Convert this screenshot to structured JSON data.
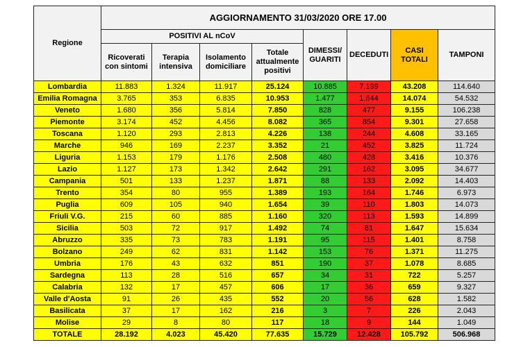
{
  "header": {
    "title": "AGGIORNAMENTO 31/03/2020 ORE 17.00",
    "region": "Regione",
    "positives": "POSITIVI AL nCoV",
    "positive_columns": [
      "Ricoverati con sintomi",
      "Terapia intensiva",
      "Isolamento domiciliare",
      "Totale attualmente positivi"
    ],
    "other_columns": [
      "DIMESSI/ GUARITI",
      "DECEDUTI",
      "CASI TOTALI",
      "TAMPONI"
    ]
  },
  "rows": [
    [
      "Lombardia",
      "11.883",
      "1.324",
      "11.917",
      "25.124",
      "10.885",
      "7.199",
      "43.208",
      "114.640"
    ],
    [
      "Emilia Romagna",
      "3.765",
      "353",
      "6.835",
      "10.953",
      "1.477",
      "1.644",
      "14.074",
      "54.532"
    ],
    [
      "Veneto",
      "1.680",
      "356",
      "5.814",
      "7.850",
      "828",
      "477",
      "9.155",
      "106.238"
    ],
    [
      "Piemonte",
      "3.174",
      "452",
      "4.456",
      "8.082",
      "365",
      "854",
      "9.301",
      "27.658"
    ],
    [
      "Toscana",
      "1.120",
      "293",
      "2.813",
      "4.226",
      "138",
      "244",
      "4.608",
      "33.165"
    ],
    [
      "Marche",
      "946",
      "169",
      "2.237",
      "3.352",
      "21",
      "452",
      "3.825",
      "11.724"
    ],
    [
      "Liguria",
      "1.153",
      "179",
      "1.176",
      "2.508",
      "480",
      "428",
      "3.416",
      "10.376"
    ],
    [
      "Lazio",
      "1.127",
      "173",
      "1.342",
      "2.642",
      "291",
      "162",
      "3.095",
      "34.677"
    ],
    [
      "Campania",
      "501",
      "133",
      "1.237",
      "1.871",
      "88",
      "133",
      "2.092",
      "14.403"
    ],
    [
      "Trento",
      "354",
      "80",
      "955",
      "1.389",
      "193",
      "164",
      "1.746",
      "6.973"
    ],
    [
      "Puglia",
      "609",
      "105",
      "940",
      "1.654",
      "39",
      "110",
      "1.803",
      "14.073"
    ],
    [
      "Friuli V.G.",
      "215",
      "60",
      "885",
      "1.160",
      "320",
      "113",
      "1.593",
      "14.899"
    ],
    [
      "Sicilia",
      "503",
      "72",
      "917",
      "1.492",
      "74",
      "81",
      "1.647",
      "15.634"
    ],
    [
      "Abruzzo",
      "335",
      "73",
      "783",
      "1.191",
      "95",
      "115",
      "1.401",
      "8.758"
    ],
    [
      "Bolzano",
      "249",
      "62",
      "831",
      "1.142",
      "153",
      "76",
      "1.371",
      "11.275"
    ],
    [
      "Umbria",
      "176",
      "43",
      "632",
      "851",
      "190",
      "37",
      "1.078",
      "8.685"
    ],
    [
      "Sardegna",
      "113",
      "28",
      "516",
      "657",
      "34",
      "31",
      "722",
      "5.257"
    ],
    [
      "Calabria",
      "132",
      "17",
      "457",
      "606",
      "17",
      "36",
      "659",
      "9.327"
    ],
    [
      "Valle d'Aosta",
      "91",
      "26",
      "435",
      "552",
      "20",
      "56",
      "628",
      "1.582"
    ],
    [
      "Basilicata",
      "37",
      "17",
      "162",
      "216",
      "3",
      "7",
      "226",
      "2.043"
    ],
    [
      "Molise",
      "29",
      "8",
      "80",
      "117",
      "18",
      "9",
      "144",
      "1.049"
    ]
  ],
  "total": [
    "TOTALE",
    "28.192",
    "4.023",
    "45.420",
    "77.635",
    "15.729",
    "12.428",
    "105.792",
    "506.968"
  ]
}
